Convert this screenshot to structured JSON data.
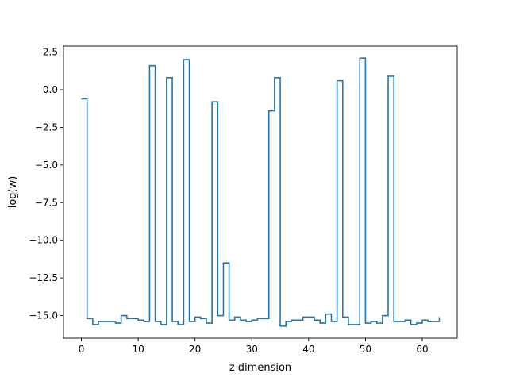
{
  "chart_data": {
    "type": "line",
    "drawstyle": "steps-post",
    "title": "",
    "xlabel": "z dimension",
    "ylabel": "log(w)",
    "xlim": [
      -3.15,
      66.15
    ],
    "ylim": [
      -16.5,
      2.9
    ],
    "x_ticks": [
      0,
      10,
      20,
      30,
      40,
      50,
      60
    ],
    "x_tick_labels": [
      "0",
      "10",
      "20",
      "30",
      "40",
      "50",
      "60"
    ],
    "y_ticks": [
      2.5,
      0.0,
      -2.5,
      -5.0,
      -7.5,
      -10.0,
      -12.5,
      -15.0
    ],
    "y_tick_labels": [
      "2.5",
      "0.0",
      "−2.5",
      "−5.0",
      "−7.5",
      "−10.0",
      "−12.5",
      "−15.0"
    ],
    "grid": false,
    "legend": false,
    "series": [
      {
        "color": "#1f77b4",
        "x": [
          0,
          1,
          2,
          3,
          4,
          5,
          6,
          7,
          8,
          9,
          10,
          11,
          12,
          13,
          14,
          15,
          16,
          17,
          18,
          19,
          20,
          21,
          22,
          23,
          24,
          25,
          26,
          27,
          28,
          29,
          30,
          31,
          32,
          33,
          34,
          35,
          36,
          37,
          38,
          39,
          40,
          41,
          42,
          43,
          44,
          45,
          46,
          47,
          48,
          49,
          50,
          51,
          52,
          53,
          54,
          55,
          56,
          57,
          58,
          59,
          60,
          61,
          62,
          63
        ],
        "values": [
          -0.6,
          -15.2,
          -15.6,
          -15.4,
          -15.4,
          -15.4,
          -15.5,
          -15.0,
          -15.2,
          -15.2,
          -15.3,
          -15.4,
          1.6,
          -15.4,
          -15.6,
          0.8,
          -15.4,
          -15.6,
          2.0,
          -15.4,
          -15.1,
          -15.2,
          -15.5,
          -0.8,
          -15.0,
          -11.5,
          -15.3,
          -15.1,
          -15.3,
          -15.4,
          -15.3,
          -15.2,
          -15.2,
          -1.4,
          0.8,
          -15.7,
          -15.4,
          -15.3,
          -15.3,
          -15.1,
          -15.1,
          -15.3,
          -15.5,
          -14.9,
          -15.4,
          0.6,
          -15.1,
          -15.6,
          -15.6,
          2.1,
          -15.5,
          -15.4,
          -15.5,
          -15.0,
          0.9,
          -15.4,
          -15.4,
          -15.3,
          -15.6,
          -15.5,
          -15.3,
          -15.4,
          -15.4,
          -15.1
        ]
      }
    ]
  }
}
